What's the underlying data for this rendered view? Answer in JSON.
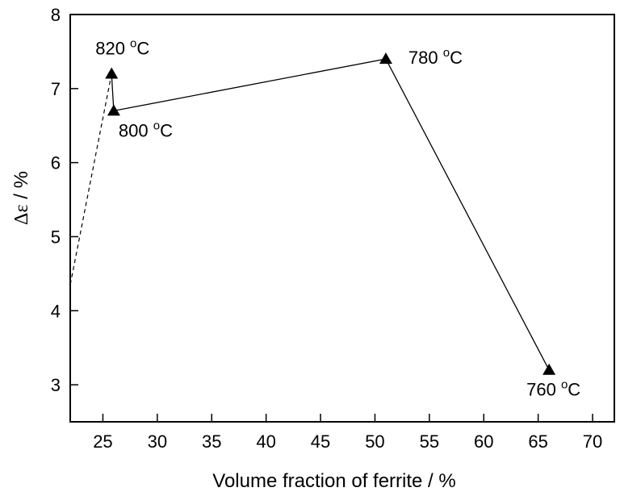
{
  "chart_data": {
    "type": "line",
    "xlabel": "Volume fraction of ferrite / %",
    "ylabel_symbol": "Δε",
    "ylabel_unit": "/ %",
    "xlim": [
      22,
      72
    ],
    "ylim": [
      2.5,
      8
    ],
    "xticks": [
      25,
      30,
      35,
      40,
      45,
      50,
      55,
      60,
      65,
      70
    ],
    "yticks": [
      3,
      4,
      5,
      6,
      7,
      8
    ],
    "grid": false,
    "series": [
      {
        "marker": "triangle",
        "points": [
          {
            "x": 26.0,
            "y": 6.7,
            "label": "800",
            "label_unit": "C",
            "label_sup": "o"
          },
          {
            "x": 51.0,
            "y": 7.4,
            "label": "780",
            "label_unit": "C",
            "label_sup": "o"
          },
          {
            "x": 66.0,
            "y": 3.2,
            "label": "760",
            "label_unit": "C",
            "label_sup": "o"
          },
          {
            "x": 25.8,
            "y": 7.2,
            "label": "820",
            "label_unit": "C",
            "label_sup": "o"
          }
        ]
      }
    ],
    "dashed_extension": {
      "from": {
        "x": 25.8,
        "y": 7.2
      },
      "to": {
        "x": 22.0,
        "y": 4.35
      }
    }
  }
}
